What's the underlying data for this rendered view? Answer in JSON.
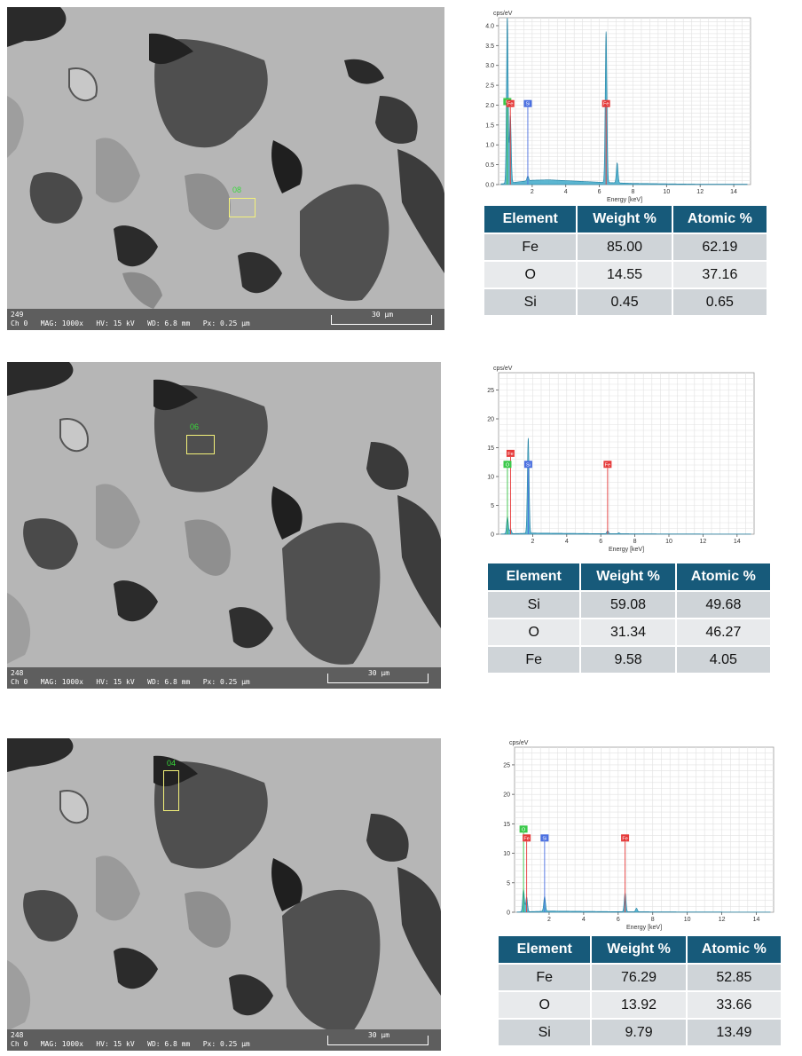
{
  "panels": [
    {
      "sem": {
        "image_number": "249",
        "params": "Ch 0   MAG: 1000x   HV: 15 kV   WD: 6.8 mm   Px: 0.25 µm",
        "scale_label": "30 µm",
        "roi_label": "08"
      },
      "table": {
        "headers": [
          "Element",
          "Weight %",
          "Atomic %"
        ],
        "rows": [
          [
            "Fe",
            "85.00",
            "62.19"
          ],
          [
            "O",
            "14.55",
            "37.16"
          ],
          [
            "Si",
            "0.45",
            "0.65"
          ]
        ]
      },
      "chart_data": {
        "type": "area",
        "ylabel": "cps/eV",
        "xlabel": "Energy [keV]",
        "xlim": [
          0,
          15
        ],
        "ylim": [
          0,
          4.2
        ],
        "xticks": [
          2,
          4,
          6,
          8,
          10,
          12,
          14
        ],
        "yticks": [
          0.0,
          0.5,
          1.0,
          1.5,
          2.0,
          2.5,
          3.0,
          3.5,
          4.0
        ],
        "ytick_labels": [
          "0.0",
          "0.5",
          "1.0",
          "1.5",
          "2.0",
          "2.5",
          "3.0",
          "3.5",
          "4.0"
        ],
        "grid": true,
        "peaks": [
          {
            "x": 0.52,
            "y": 4.2
          },
          {
            "x": 0.7,
            "y": 1.7
          },
          {
            "x": 1.74,
            "y": 0.12
          },
          {
            "x": 6.4,
            "y": 3.8
          },
          {
            "x": 7.06,
            "y": 0.5
          }
        ],
        "background": [
          [
            0.2,
            0.02
          ],
          [
            1.0,
            0.06
          ],
          [
            2.0,
            0.11
          ],
          [
            3.0,
            0.12
          ],
          [
            4.0,
            0.1
          ],
          [
            5.0,
            0.08
          ],
          [
            6.0,
            0.06
          ],
          [
            8.0,
            0.03
          ],
          [
            10.0,
            0.02
          ],
          [
            12.0,
            0.01
          ],
          [
            14.0,
            0.01
          ]
        ],
        "markers": [
          {
            "label": "O",
            "x": 0.52,
            "y": 2.0,
            "color": "#3ac94a"
          },
          {
            "label": "Fe",
            "x": 0.7,
            "y": 1.95,
            "color": "#e53a3a"
          },
          {
            "label": "Si",
            "x": 1.74,
            "y": 1.95,
            "color": "#4a6fe0"
          },
          {
            "label": "Fe",
            "x": 6.4,
            "y": 1.95,
            "color": "#e53a3a"
          }
        ]
      }
    },
    {
      "sem": {
        "image_number": "248",
        "params": "Ch 0   MAG: 1000x   HV: 15 kV   WD: 6.8 mm   Px: 0.25 µm",
        "scale_label": "30 µm",
        "roi_label": "06"
      },
      "table": {
        "headers": [
          "Element",
          "Weight %",
          "Atomic %"
        ],
        "rows": [
          [
            "Si",
            "59.08",
            "49.68"
          ],
          [
            "O",
            "31.34",
            "46.27"
          ],
          [
            "Fe",
            "9.58",
            "4.05"
          ]
        ]
      },
      "chart_data": {
        "type": "area",
        "ylabel": "cps/eV",
        "xlabel": "Energy [keV]",
        "xlim": [
          0,
          15
        ],
        "ylim": [
          0,
          28
        ],
        "xticks": [
          2,
          4,
          6,
          8,
          10,
          12,
          14
        ],
        "yticks": [
          0,
          5,
          10,
          15,
          20,
          25
        ],
        "ytick_labels": [
          "0",
          "5",
          "10",
          "15",
          "20",
          "25"
        ],
        "grid": true,
        "peaks": [
          {
            "x": 0.52,
            "y": 3.0
          },
          {
            "x": 0.7,
            "y": 0.8
          },
          {
            "x": 1.74,
            "y": 16.5
          },
          {
            "x": 6.4,
            "y": 0.5
          },
          {
            "x": 7.06,
            "y": 0.15
          }
        ],
        "background": [
          [
            0.2,
            0.05
          ],
          [
            2.0,
            0.2
          ],
          [
            4.0,
            0.15
          ],
          [
            6.0,
            0.1
          ],
          [
            10.0,
            0.05
          ],
          [
            14.0,
            0.03
          ]
        ],
        "markers": [
          {
            "label": "Fe",
            "x": 0.7,
            "y": 13.4,
            "color": "#e53a3a"
          },
          {
            "label": "O",
            "x": 0.52,
            "y": 11.5,
            "color": "#3ac94a"
          },
          {
            "label": "Si",
            "x": 1.74,
            "y": 11.5,
            "color": "#4a6fe0"
          },
          {
            "label": "Fe",
            "x": 6.4,
            "y": 11.5,
            "color": "#e53a3a"
          }
        ]
      }
    },
    {
      "sem": {
        "image_number": "248",
        "params": "Ch 0   MAG: 1000x   HV: 15 kV   WD: 6.8 mm   Px: 0.25 µm",
        "scale_label": "30 µm",
        "roi_label": "04"
      },
      "table": {
        "headers": [
          "Element",
          "Weight %",
          "Atomic %"
        ],
        "rows": [
          [
            "Fe",
            "76.29",
            "52.85"
          ],
          [
            "O",
            "13.92",
            "33.66"
          ],
          [
            "Si",
            "9.79",
            "13.49"
          ]
        ]
      },
      "chart_data": {
        "type": "area",
        "ylabel": "cps/eV",
        "xlabel": "Energy [keV]",
        "xlim": [
          0,
          15
        ],
        "ylim": [
          0,
          28
        ],
        "xticks": [
          2,
          4,
          6,
          8,
          10,
          12,
          14
        ],
        "yticks": [
          0,
          5,
          10,
          15,
          20,
          25
        ],
        "ytick_labels": [
          "0",
          "5",
          "10",
          "15",
          "20",
          "25"
        ],
        "grid": true,
        "peaks": [
          {
            "x": 0.52,
            "y": 3.8
          },
          {
            "x": 0.7,
            "y": 2.5
          },
          {
            "x": 1.74,
            "y": 2.5
          },
          {
            "x": 6.4,
            "y": 3.2
          },
          {
            "x": 7.06,
            "y": 0.6
          }
        ],
        "background": [
          [
            0.2,
            0.05
          ],
          [
            2.0,
            0.2
          ],
          [
            4.0,
            0.15
          ],
          [
            6.0,
            0.1
          ],
          [
            10.0,
            0.05
          ],
          [
            14.0,
            0.03
          ]
        ],
        "markers": [
          {
            "label": "O",
            "x": 0.52,
            "y": 13.5,
            "color": "#3ac94a"
          },
          {
            "label": "Fe",
            "x": 0.7,
            "y": 12.0,
            "color": "#e53a3a"
          },
          {
            "label": "Si",
            "x": 1.74,
            "y": 12.0,
            "color": "#4a6fe0"
          },
          {
            "label": "Fe",
            "x": 6.4,
            "y": 12.0,
            "color": "#e53a3a"
          }
        ]
      }
    }
  ]
}
